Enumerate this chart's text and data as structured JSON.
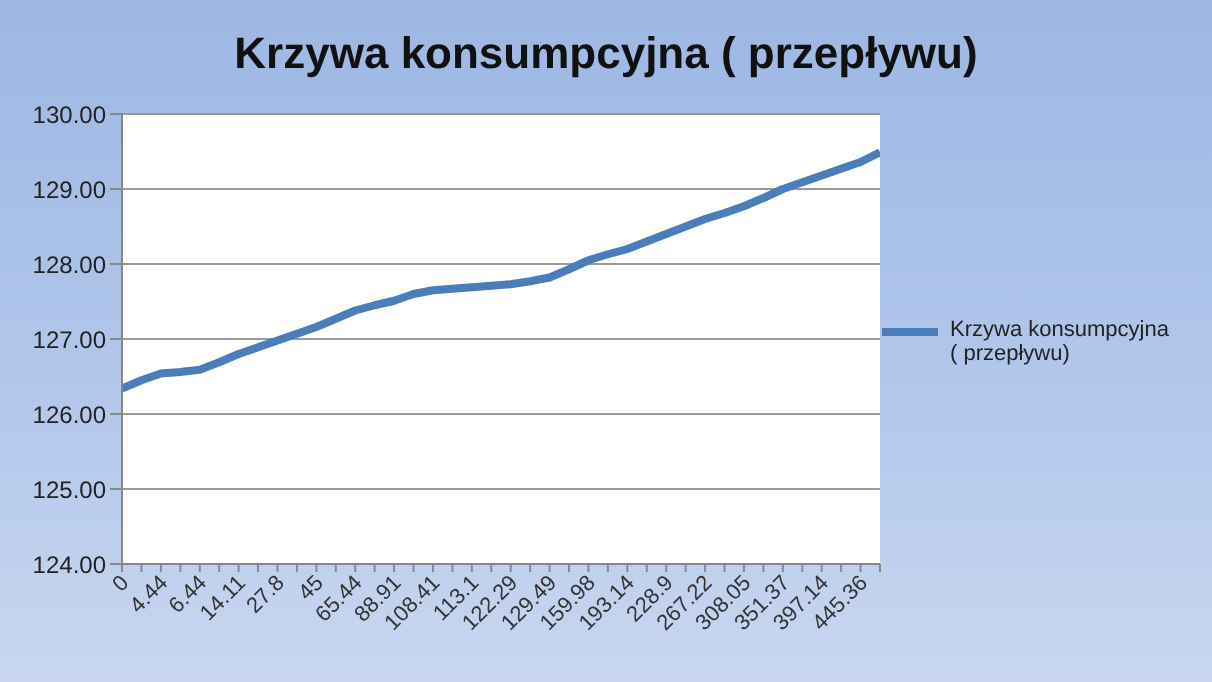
{
  "chart_data": {
    "type": "line",
    "title": "Krzywa konsumpcyjna ( przepływu)",
    "categories": [
      "0",
      null,
      "4.44",
      null,
      "6.44",
      null,
      "14.11",
      null,
      "27.8",
      null,
      "45",
      null,
      "65.44",
      null,
      "88.91",
      null,
      "108.41",
      null,
      "113.1",
      null,
      "122.29",
      null,
      "129.49",
      null,
      "159.98",
      null,
      "193.14",
      null,
      "228.9",
      null,
      "267.22",
      null,
      "308.05",
      null,
      "351.37",
      null,
      "397.14",
      null,
      "445.36",
      null
    ],
    "series": [
      {
        "name": "Krzywa konsumpcyjna ( przepływu)",
        "color": "#4a7ebb",
        "values": [
          126.34,
          126.45,
          126.54,
          126.56,
          126.59,
          126.69,
          126.8,
          126.89,
          126.98,
          127.07,
          127.16,
          127.27,
          127.38,
          127.45,
          127.51,
          127.6,
          127.65,
          127.67,
          127.69,
          127.71,
          127.73,
          127.77,
          127.82,
          127.93,
          128.05,
          128.13,
          128.2,
          128.3,
          128.4,
          128.5,
          128.6,
          128.68,
          128.77,
          128.88,
          129.0,
          129.09,
          129.18,
          129.27,
          129.36,
          129.49
        ]
      }
    ],
    "ylim": [
      124,
      130
    ],
    "yticks": [
      {
        "value": 124,
        "label": "124.00"
      },
      {
        "value": 125,
        "label": "125.00"
      },
      {
        "value": 126,
        "label": "126.00"
      },
      {
        "value": 127,
        "label": "127.00"
      },
      {
        "value": 128,
        "label": "128.00"
      },
      {
        "value": 129,
        "label": "129.00"
      },
      {
        "value": 130,
        "label": "130.00"
      }
    ],
    "grid": "y",
    "legend": "right",
    "marker": "none",
    "line_style": "solid"
  }
}
